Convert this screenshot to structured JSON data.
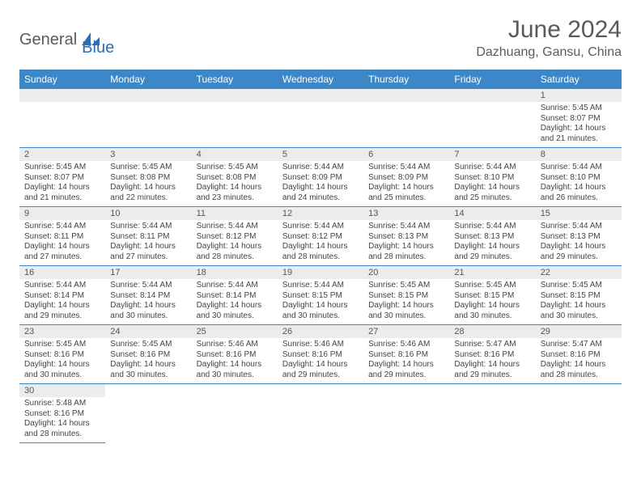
{
  "brand": {
    "part1": "General",
    "part2": "Blue"
  },
  "title": "June 2024",
  "location": "Dazhuang, Gansu, China",
  "colors": {
    "header_bg": "#3b87c8",
    "header_text": "#ffffff",
    "daynum_bg": "#ececec",
    "cell_border": "#3b87c8",
    "body_text": "#444444",
    "title_text": "#5a5a5a",
    "brand_gray": "#5a5a5a",
    "brand_blue": "#2a6db8"
  },
  "daysOfWeek": [
    "Sunday",
    "Monday",
    "Tuesday",
    "Wednesday",
    "Thursday",
    "Friday",
    "Saturday"
  ],
  "weeks": [
    [
      null,
      null,
      null,
      null,
      null,
      null,
      {
        "n": "1",
        "sr": "5:45 AM",
        "ss": "8:07 PM",
        "dl": "14 hours and 21 minutes."
      }
    ],
    [
      {
        "n": "2",
        "sr": "5:45 AM",
        "ss": "8:07 PM",
        "dl": "14 hours and 21 minutes."
      },
      {
        "n": "3",
        "sr": "5:45 AM",
        "ss": "8:08 PM",
        "dl": "14 hours and 22 minutes."
      },
      {
        "n": "4",
        "sr": "5:45 AM",
        "ss": "8:08 PM",
        "dl": "14 hours and 23 minutes."
      },
      {
        "n": "5",
        "sr": "5:44 AM",
        "ss": "8:09 PM",
        "dl": "14 hours and 24 minutes."
      },
      {
        "n": "6",
        "sr": "5:44 AM",
        "ss": "8:09 PM",
        "dl": "14 hours and 25 minutes."
      },
      {
        "n": "7",
        "sr": "5:44 AM",
        "ss": "8:10 PM",
        "dl": "14 hours and 25 minutes."
      },
      {
        "n": "8",
        "sr": "5:44 AM",
        "ss": "8:10 PM",
        "dl": "14 hours and 26 minutes."
      }
    ],
    [
      {
        "n": "9",
        "sr": "5:44 AM",
        "ss": "8:11 PM",
        "dl": "14 hours and 27 minutes."
      },
      {
        "n": "10",
        "sr": "5:44 AM",
        "ss": "8:11 PM",
        "dl": "14 hours and 27 minutes."
      },
      {
        "n": "11",
        "sr": "5:44 AM",
        "ss": "8:12 PM",
        "dl": "14 hours and 28 minutes."
      },
      {
        "n": "12",
        "sr": "5:44 AM",
        "ss": "8:12 PM",
        "dl": "14 hours and 28 minutes."
      },
      {
        "n": "13",
        "sr": "5:44 AM",
        "ss": "8:13 PM",
        "dl": "14 hours and 28 minutes."
      },
      {
        "n": "14",
        "sr": "5:44 AM",
        "ss": "8:13 PM",
        "dl": "14 hours and 29 minutes."
      },
      {
        "n": "15",
        "sr": "5:44 AM",
        "ss": "8:13 PM",
        "dl": "14 hours and 29 minutes."
      }
    ],
    [
      {
        "n": "16",
        "sr": "5:44 AM",
        "ss": "8:14 PM",
        "dl": "14 hours and 29 minutes."
      },
      {
        "n": "17",
        "sr": "5:44 AM",
        "ss": "8:14 PM",
        "dl": "14 hours and 30 minutes."
      },
      {
        "n": "18",
        "sr": "5:44 AM",
        "ss": "8:14 PM",
        "dl": "14 hours and 30 minutes."
      },
      {
        "n": "19",
        "sr": "5:44 AM",
        "ss": "8:15 PM",
        "dl": "14 hours and 30 minutes."
      },
      {
        "n": "20",
        "sr": "5:45 AM",
        "ss": "8:15 PM",
        "dl": "14 hours and 30 minutes."
      },
      {
        "n": "21",
        "sr": "5:45 AM",
        "ss": "8:15 PM",
        "dl": "14 hours and 30 minutes."
      },
      {
        "n": "22",
        "sr": "5:45 AM",
        "ss": "8:15 PM",
        "dl": "14 hours and 30 minutes."
      }
    ],
    [
      {
        "n": "23",
        "sr": "5:45 AM",
        "ss": "8:16 PM",
        "dl": "14 hours and 30 minutes."
      },
      {
        "n": "24",
        "sr": "5:45 AM",
        "ss": "8:16 PM",
        "dl": "14 hours and 30 minutes."
      },
      {
        "n": "25",
        "sr": "5:46 AM",
        "ss": "8:16 PM",
        "dl": "14 hours and 30 minutes."
      },
      {
        "n": "26",
        "sr": "5:46 AM",
        "ss": "8:16 PM",
        "dl": "14 hours and 29 minutes."
      },
      {
        "n": "27",
        "sr": "5:46 AM",
        "ss": "8:16 PM",
        "dl": "14 hours and 29 minutes."
      },
      {
        "n": "28",
        "sr": "5:47 AM",
        "ss": "8:16 PM",
        "dl": "14 hours and 29 minutes."
      },
      {
        "n": "29",
        "sr": "5:47 AM",
        "ss": "8:16 PM",
        "dl": "14 hours and 28 minutes."
      }
    ],
    [
      {
        "n": "30",
        "sr": "5:48 AM",
        "ss": "8:16 PM",
        "dl": "14 hours and 28 minutes."
      },
      null,
      null,
      null,
      null,
      null,
      null
    ]
  ],
  "labels": {
    "sunrise": "Sunrise: ",
    "sunset": "Sunset: ",
    "daylight": "Daylight: "
  }
}
